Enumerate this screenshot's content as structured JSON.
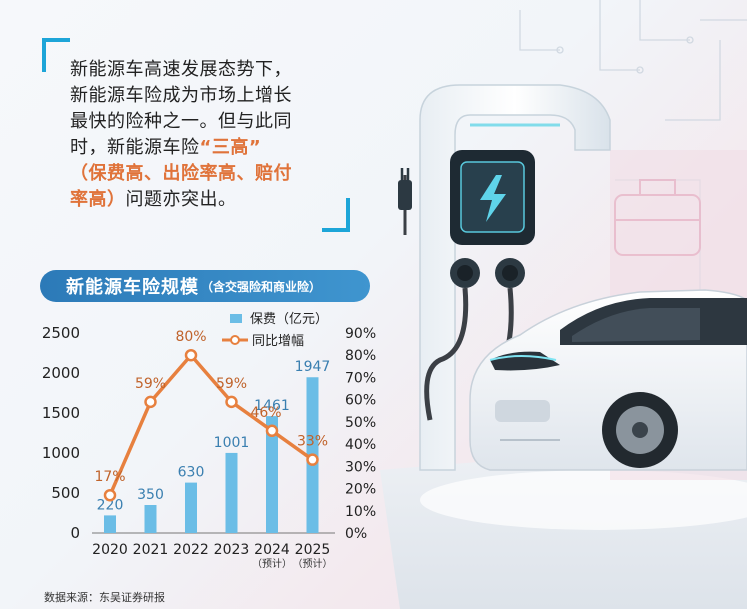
{
  "intro": {
    "line1": "新能源车高速发展态势下，",
    "line2": "新能源车险成为市场上增长",
    "line3": "最快的险种之一。但与此同",
    "line4a": "时，新能源车险",
    "line4b": "“三高”",
    "line5": "（保费高、出险率高、赔付",
    "line6a": "率高）",
    "line6b": "问题亦突出。"
  },
  "banner": {
    "title": "新能源车险规模",
    "subtitle": "（含交强险和商业险）"
  },
  "source": "数据来源：东吴证券研报",
  "colors": {
    "bar": "#6bbde6",
    "line": "#e7803f",
    "banner": "#2c7ab8",
    "accent": "#1da5d8"
  },
  "chart_data": {
    "type": "bar+line",
    "categories": [
      "2020",
      "2021",
      "2022",
      "2023",
      "2024",
      "2025"
    ],
    "category_notes": [
      "",
      "",
      "",
      "",
      "（预计）",
      "（预计）"
    ],
    "series": [
      {
        "name": "保费（亿元）",
        "type": "bar",
        "axis": "left",
        "values": [
          220,
          350,
          630,
          1001,
          1461,
          1947
        ],
        "labels": [
          "220",
          "350",
          "630",
          "1001",
          "1461",
          "1947"
        ]
      },
      {
        "name": "同比增幅",
        "type": "line",
        "axis": "right",
        "values": [
          17,
          59,
          80,
          59,
          46,
          33
        ],
        "labels": [
          "17%",
          "59%",
          "80%",
          "59%",
          "46%",
          "33%"
        ]
      }
    ],
    "left_axis": {
      "ylim": [
        0,
        2500
      ],
      "ticks": [
        "0",
        "500",
        "1000",
        "1500",
        "2000",
        "2500"
      ]
    },
    "right_axis": {
      "ylim": [
        0,
        90
      ],
      "ticks": [
        "0%",
        "10%",
        "20%",
        "30%",
        "40%",
        "50%",
        "60%",
        "70%",
        "80%",
        "90%"
      ]
    },
    "legend_placement": "top-right"
  }
}
